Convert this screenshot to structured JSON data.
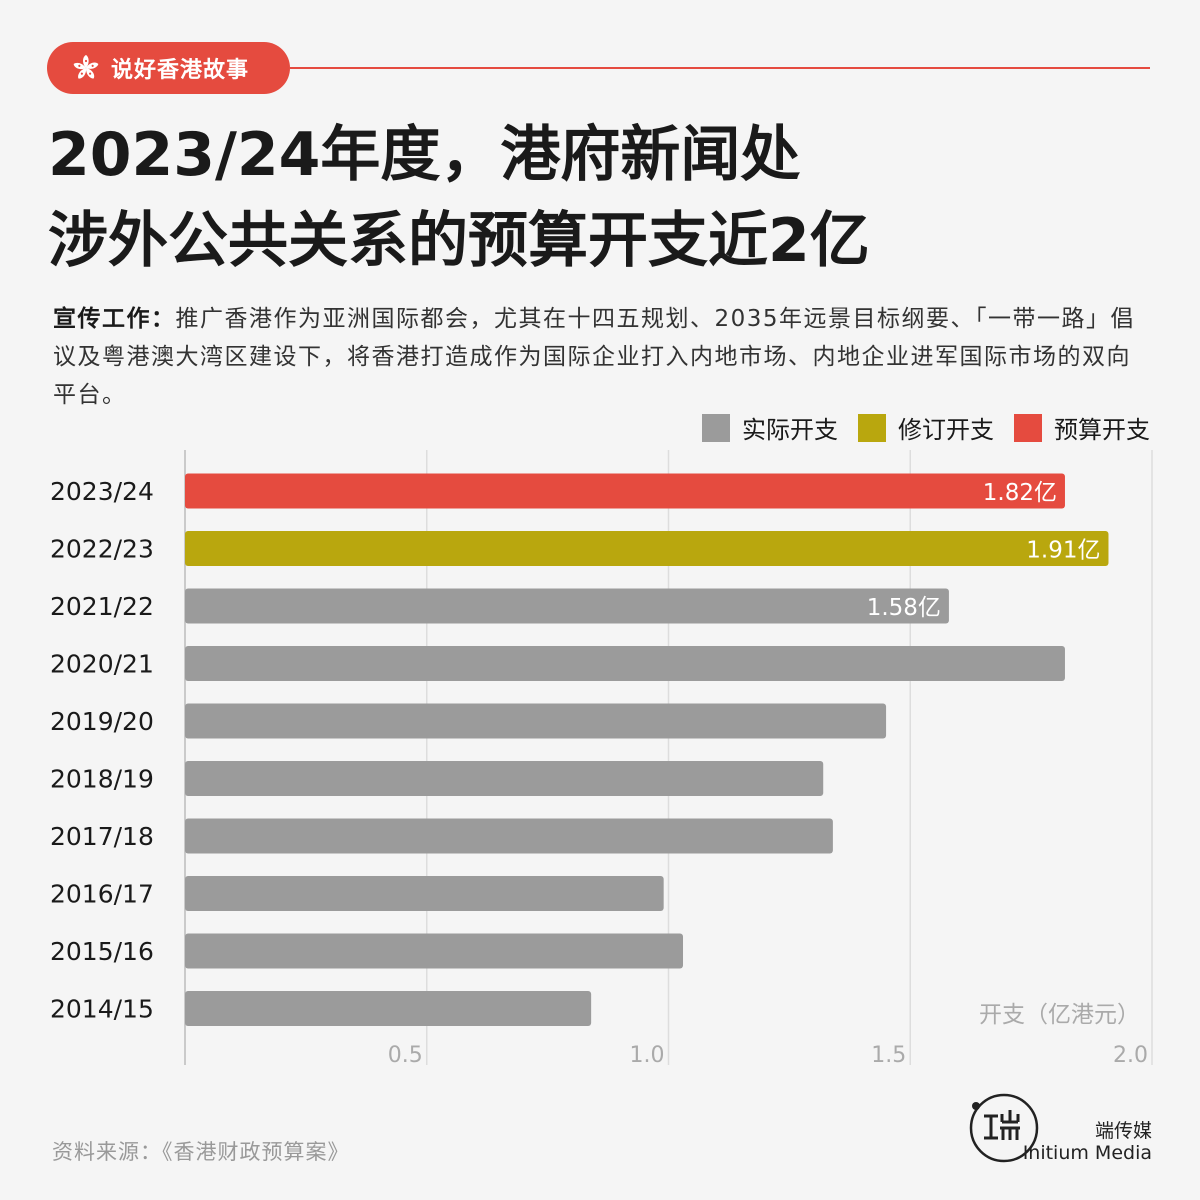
{
  "badge": {
    "icon": "bauhinia-icon",
    "label": "说好香港故事"
  },
  "title": {
    "line1": "2023/24年度，港府新闻处",
    "line2": "涉外公共关系的预算开支近2亿"
  },
  "description": {
    "label": "宣传工作：",
    "text": "推广香港作为亚洲国际都会，尤其在十四五规划、2035年远景目标纲要、「一带一路」倡议及粤港澳大湾区建设下，将香港打造成作为国际企业打入内地市场、内地企业进军国际市场的双向平台。"
  },
  "source": "资料来源：《香港财政预算案》",
  "brand": {
    "name_cn": "端传媒",
    "name_en": "Initium Media",
    "logo_icon": "initium-logo-icon"
  },
  "colors": {
    "actual": "#9b9b9b",
    "revised": "#b9a70e",
    "budget": "#e54b3f",
    "accent": "#e54b3f"
  },
  "chart_data": {
    "type": "bar",
    "orientation": "horizontal",
    "legend": [
      {
        "key": "actual",
        "label": "实际开支",
        "color": "#9b9b9b"
      },
      {
        "key": "revised",
        "label": "修订开支",
        "color": "#b9a70e"
      },
      {
        "key": "budget",
        "label": "预算开支",
        "color": "#e54b3f"
      }
    ],
    "legend_position": "top-right",
    "categories": [
      "2023/24",
      "2022/23",
      "2021/22",
      "2020/21",
      "2019/20",
      "2018/19",
      "2017/18",
      "2016/17",
      "2015/16",
      "2014/15"
    ],
    "values": [
      1.82,
      1.91,
      1.58,
      1.82,
      1.45,
      1.32,
      1.34,
      0.99,
      1.03,
      0.84
    ],
    "types": [
      "budget",
      "revised",
      "actual",
      "actual",
      "actual",
      "actual",
      "actual",
      "actual",
      "actual",
      "actual"
    ],
    "data_labels": [
      "1.82亿",
      "1.91亿",
      "1.58亿",
      "",
      "",
      "",
      "",
      "",
      "",
      ""
    ],
    "xlabel": "开支（亿港元）",
    "xlim": [
      0,
      2.0
    ],
    "xticks": [
      0.5,
      1.0,
      1.5,
      2.0
    ],
    "xtick_labels": [
      "0.5",
      "1.0",
      "1.5",
      "2.0"
    ],
    "grid": "vertical"
  }
}
